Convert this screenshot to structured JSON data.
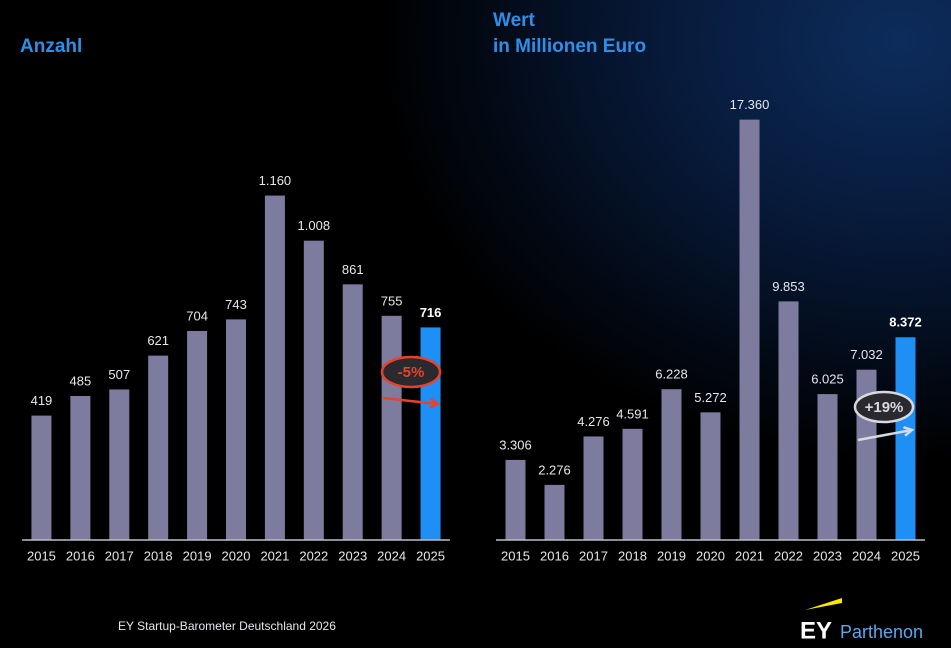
{
  "chart_data": [
    {
      "type": "bar",
      "title": "Anzahl",
      "categories": [
        "2015",
        "2016",
        "2017",
        "2018",
        "2019",
        "2020",
        "2021",
        "2022",
        "2023",
        "2024",
        "2025"
      ],
      "values": [
        419,
        485,
        507,
        621,
        704,
        743,
        1160,
        1008,
        861,
        755,
        716
      ],
      "value_labels": [
        "419",
        "485",
        "507",
        "621",
        "704",
        "743",
        "1.160",
        "1.008",
        "861",
        "755",
        "716"
      ],
      "colors": [
        "#7d7c9e",
        "#7d7c9e",
        "#7d7c9e",
        "#7d7c9e",
        "#7d7c9e",
        "#7d7c9e",
        "#7d7c9e",
        "#7d7c9e",
        "#7d7c9e",
        "#7d7c9e",
        "#1e90f5"
      ],
      "ylim": [
        0,
        1300
      ],
      "annotation": "-5%"
    },
    {
      "type": "bar",
      "title": "Wert",
      "subtitle": "in Millionen Euro",
      "categories": [
        "2015",
        "2016",
        "2017",
        "2018",
        "2019",
        "2020",
        "2021",
        "2022",
        "2023",
        "2024",
        "2025"
      ],
      "values": [
        3306,
        2276,
        4276,
        4591,
        6228,
        5272,
        17360,
        9853,
        6025,
        7032,
        8372
      ],
      "value_labels": [
        "3.306",
        "2.276",
        "4.276",
        "4.591",
        "6.228",
        "5.272",
        "17.360",
        "9.853",
        "6.025",
        "7.032",
        "8.372"
      ],
      "colors": [
        "#7d7c9e",
        "#7d7c9e",
        "#7d7c9e",
        "#7d7c9e",
        "#7d7c9e",
        "#7d7c9e",
        "#7d7c9e",
        "#7d7c9e",
        "#7d7c9e",
        "#7d7c9e",
        "#1e90f5"
      ],
      "ylim": [
        0,
        18500
      ],
      "annotation": "+19%"
    }
  ],
  "footer": {
    "source": "EY Startup-Barometer Deutschland 2026",
    "logo_ey": "EY",
    "logo_text": "Parthenon"
  }
}
